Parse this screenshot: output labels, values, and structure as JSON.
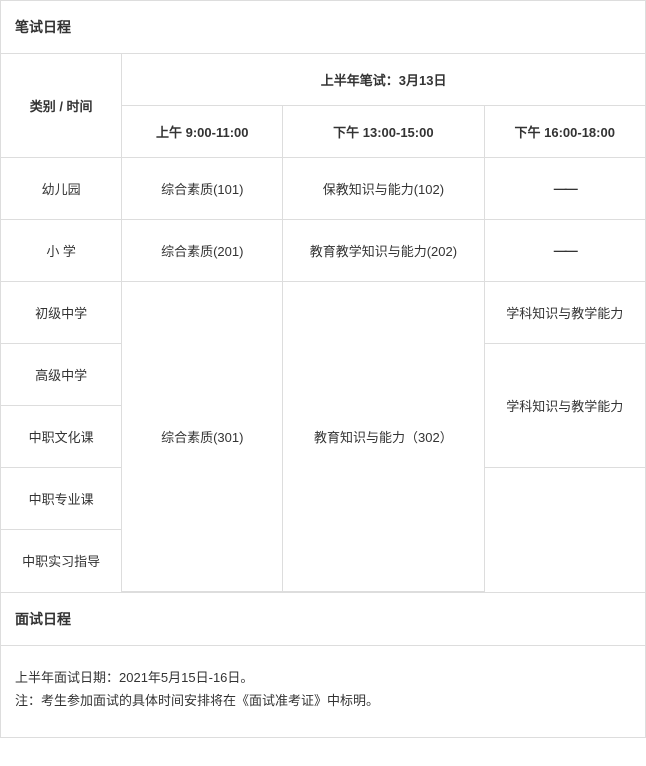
{
  "written": {
    "section_title": "笔试日程",
    "header_category_time": "类别  /  时间",
    "exam_title": "上半年笔试：3月13日",
    "time_slots": {
      "am": "上午 9:00-11:00",
      "pm1": "下午 13:00-15:00",
      "pm2": "下午 16:00-18:00"
    },
    "categories": {
      "kindergarten": "幼儿园",
      "primary": "小   学",
      "junior_high": "初级中学",
      "senior_high": "高级中学",
      "vocational_culture": "中职文化课",
      "vocational_major": "中职专业课",
      "vocational_intern": "中职实习指导"
    },
    "cells": {
      "kindergarten_am": "综合素质(101)",
      "kindergarten_pm1": "保教知识与能力(102)",
      "primary_am": "综合素质(201)",
      "primary_pm1": "教育教学知识与能力(202)",
      "merged_am": "综合素质(301)",
      "merged_pm1": "教育知识与能力（302）",
      "junior_pm2": "学科知识与教学能力",
      "senior_voc_culture_pm2": "学科知识与教学能力",
      "dash": "——"
    }
  },
  "interview": {
    "section_title": "面试日程",
    "line1": "上半年面试日期：2021年5月15日-16日。",
    "line2": "注：考生参加面试的具体时间安排将在《面试准考证》中标明。"
  },
  "colors": {
    "border": "#dddddd",
    "text": "#333333",
    "background": "#ffffff"
  }
}
